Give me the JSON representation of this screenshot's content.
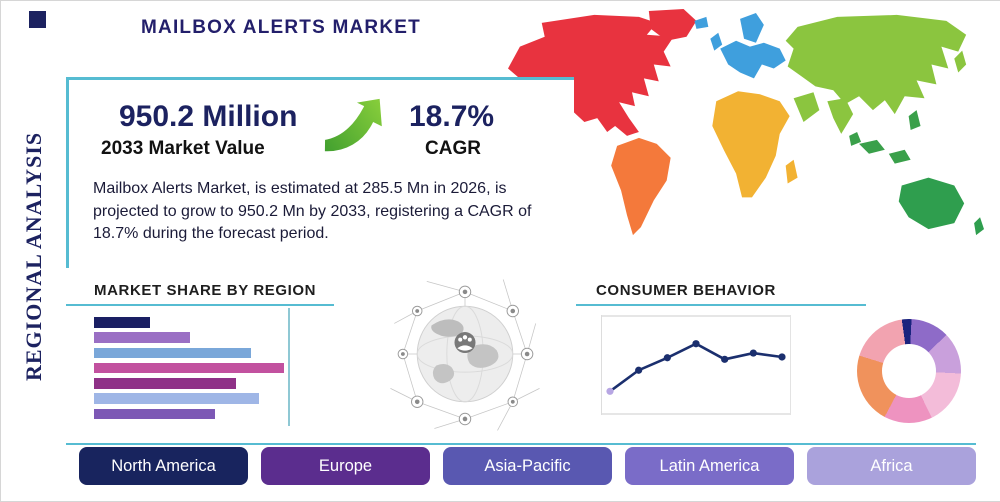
{
  "page": {
    "title": "MAILBOX ALERTS MARKET",
    "vertical_label": "REGIONAL ANALYSIS"
  },
  "highlights": {
    "market_value": "950.2 Million",
    "market_value_caption": "2033 Market Value",
    "cagr_value": "18.7%",
    "cagr_caption": "CAGR",
    "description": "Mailbox Alerts Market, is estimated at 285.5 Mn in 2026, is projected to grow to 950.2 Mn by 2033, registering a CAGR of 18.7% during the forecast period."
  },
  "sections": {
    "market_share_title": "MARKET SHARE BY REGION",
    "consumer_behavior_title": "CONSUMER BEHAVIOR"
  },
  "region_buttons": [
    {
      "label": "North America",
      "color": "#18245e"
    },
    {
      "label": "Europe",
      "color": "#5b2d8e"
    },
    {
      "label": "Asia-Pacific",
      "color": "#5958b1"
    },
    {
      "label": "Latin America",
      "color": "#7a6cc8"
    },
    {
      "label": "Africa",
      "color": "#aaa2dc"
    }
  ],
  "colors": {
    "accent_teal": "#56bcd2",
    "navy": "#1c2260",
    "arrow_green": "#62b82e"
  },
  "world_map": {
    "north_america": "#e8333f",
    "greenland": "#e8333f",
    "south_america": "#f4793b",
    "europe": "#3f9fdd",
    "africa": "#f2b233",
    "asia": "#8bc53f",
    "southeast_asia": "#3aa04a",
    "australia": "#2f9e4e"
  },
  "chart_data": [
    {
      "type": "bar",
      "title": "MARKET SHARE BY REGION",
      "orientation": "horizontal",
      "values": [
        29,
        50,
        82,
        99,
        74,
        86,
        63
      ],
      "xlim": [
        0,
        100
      ],
      "colors": [
        "#1a1f63",
        "#9a6fc4",
        "#7aa7d9",
        "#c2519f",
        "#8f3187",
        "#9fb6e6",
        "#7d58b5"
      ],
      "value_labels_visible": false,
      "grid": false
    },
    {
      "type": "line",
      "title": "CONSUMER BEHAVIOR",
      "x": [
        1,
        2,
        3,
        4,
        5,
        6,
        7
      ],
      "values": [
        1.5,
        4.2,
        5.8,
        7.6,
        5.6,
        6.4,
        5.9
      ],
      "ylim": [
        0,
        10
      ],
      "color": "#1b2f6e",
      "first_marker_color": "#b7a6e3",
      "grid": true
    },
    {
      "type": "pie",
      "title": "Regional distribution donut",
      "donut": true,
      "slices": [
        {
          "value": 3,
          "color": "#1a237e"
        },
        {
          "value": 12,
          "color": "#8e6bc8"
        },
        {
          "value": 13,
          "color": "#c9a0dc"
        },
        {
          "value": 17,
          "color": "#f3bcd9"
        },
        {
          "value": 15,
          "color": "#ee93c0"
        },
        {
          "value": 22,
          "color": "#f0925c"
        },
        {
          "value": 18,
          "color": "#f2a3b0"
        }
      ]
    }
  ]
}
